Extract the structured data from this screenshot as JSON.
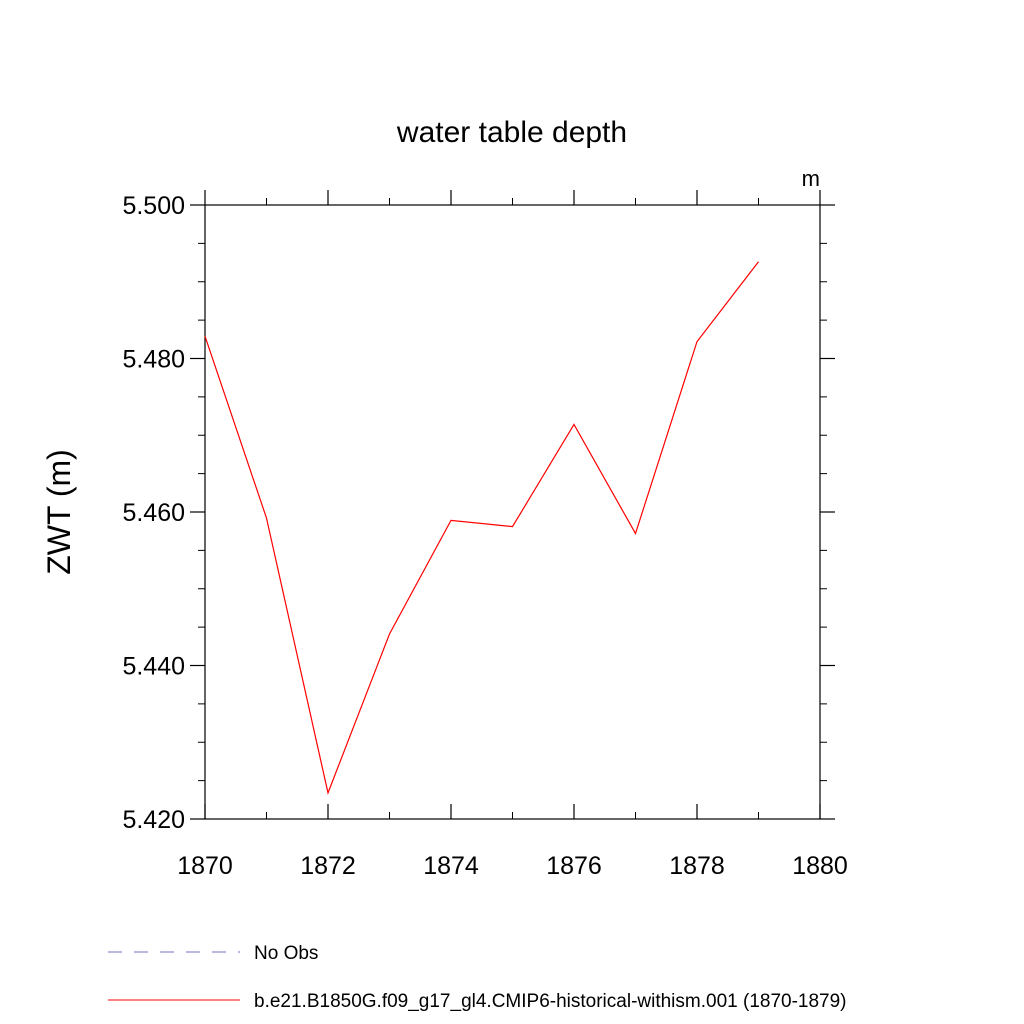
{
  "chart_data": {
    "type": "line",
    "title": "water table depth",
    "units": "m",
    "ylabel": "ZWT  (m)",
    "xlabel": "",
    "xlim": [
      1870,
      1880
    ],
    "ylim": [
      5.42,
      5.5
    ],
    "xticks": [
      "1870",
      "1872",
      "1874",
      "1876",
      "1878",
      "1880"
    ],
    "yticks": [
      "5.420",
      "5.440",
      "5.460",
      "5.480",
      "5.500"
    ],
    "grid": false,
    "legend_position": "bottom",
    "series": [
      {
        "name": "b.e21.B1850G.f09_g17_gl4.CMIP6-historical-withism.001 (1870-1879)",
        "color": "#ff0000",
        "style": "solid",
        "x": [
          1870,
          1871,
          1872,
          1873,
          1874,
          1875,
          1876,
          1877,
          1878,
          1879
        ],
        "y": [
          5.4829,
          5.4592,
          5.4234,
          5.4441,
          5.4589,
          5.4581,
          5.4714,
          5.4572,
          5.4822,
          5.4926
        ]
      }
    ],
    "legend": [
      {
        "label": "No Obs",
        "color": "#7070c0",
        "style": "dashed"
      },
      {
        "label": "b.e21.B1850G.f09_g17_gl4.CMIP6-historical-withism.001 (1870-1879)",
        "color": "#ff0000",
        "style": "solid"
      }
    ]
  }
}
